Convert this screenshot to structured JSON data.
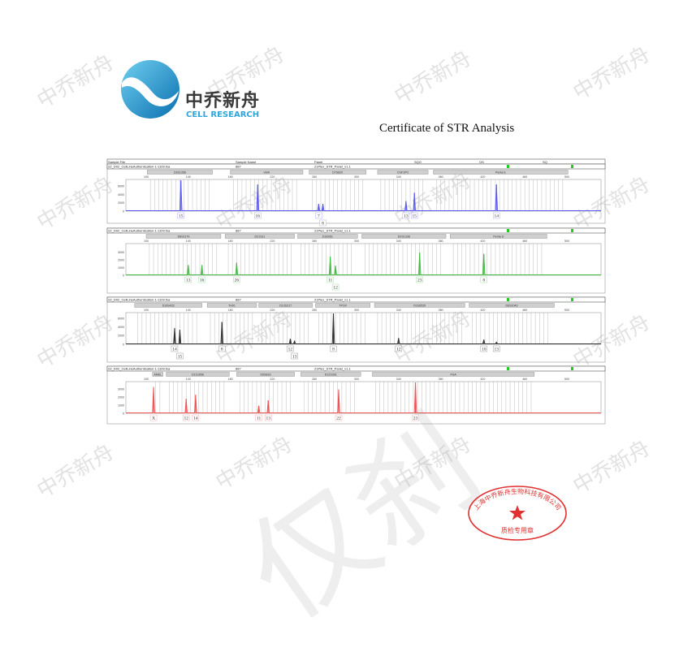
{
  "watermark_text": "中乔新舟",
  "logo": {
    "cn": "中乔新舟",
    "en": "CELL RESEARCH"
  },
  "title": "Certificate of STR Analysis",
  "header": {
    "columns": [
      "Sample File",
      "Sample Name",
      "Panel",
      "SQO",
      "OS",
      "SQ"
    ]
  },
  "sample": {
    "file": "2Z_D02_CellLineAuthentication-1-1109.fsa",
    "name": "887",
    "panel": "21Plex_STR_Panel_v1.1",
    "status_color": "#22cc22"
  },
  "chart_data": [
    {
      "type": "line",
      "dye_color": "#5a5af0",
      "xlim": [
        80,
        530
      ],
      "x_ticks": [
        100,
        140,
        180,
        220,
        260,
        300,
        340,
        380,
        420,
        460,
        500
      ],
      "ylim": [
        0,
        7400
      ],
      "y_ticks": [
        2000,
        4000,
        6000
      ],
      "loci": [
        {
          "name": "D3S1358",
          "range": [
            101,
            163
          ]
        },
        {
          "name": "vWA",
          "range": [
            180,
            249
          ]
        },
        {
          "name": "D7S820",
          "range": [
            255,
            309
          ]
        },
        {
          "name": "CSF1PO",
          "range": [
            320,
            368
          ]
        },
        {
          "name": "Penta E",
          "range": [
            373,
            501
          ]
        }
      ],
      "peaks": [
        {
          "allele": "15",
          "bp": 133,
          "height": 7400
        },
        {
          "allele": "16",
          "bp": 206,
          "height": 6400
        },
        {
          "allele": "7",
          "bp": 264,
          "height": 1750
        },
        {
          "allele": "8",
          "bp": 268,
          "height": 1750
        },
        {
          "allele": "13",
          "bp": 347,
          "height": 2400
        },
        {
          "allele": "15",
          "bp": 355,
          "height": 4400
        },
        {
          "allele": "14",
          "bp": 433,
          "height": 6400
        }
      ]
    },
    {
      "type": "line",
      "dye_color": "#44bb44",
      "xlim": [
        80,
        530
      ],
      "x_ticks": [
        100,
        140,
        180,
        220,
        260,
        300,
        340,
        380,
        420,
        460,
        500
      ],
      "ylim": [
        0,
        4000
      ],
      "y_ticks": [
        1000,
        2000,
        3000
      ],
      "loci": [
        {
          "name": "D8S1179",
          "range": [
            100,
            171
          ]
        },
        {
          "name": "D21S11",
          "range": [
            175,
            241
          ]
        },
        {
          "name": "D18S51",
          "range": [
            244,
            301
          ]
        },
        {
          "name": "D2S1338",
          "range": [
            305,
            385
          ]
        },
        {
          "name": "Penta D",
          "range": [
            389,
            481
          ]
        }
      ],
      "peaks": [
        {
          "allele": "13",
          "bp": 140,
          "height": 1330
        },
        {
          "allele": "16",
          "bp": 153,
          "height": 1330
        },
        {
          "allele": "26",
          "bp": 186,
          "height": 1630
        },
        {
          "allele": "11",
          "bp": 275,
          "height": 2400
        },
        {
          "allele": "12",
          "bp": 280,
          "height": 1230
        },
        {
          "allele": "23",
          "bp": 360,
          "height": 2930
        },
        {
          "allele": "8",
          "bp": 421,
          "height": 2770
        }
      ]
    },
    {
      "type": "line",
      "dye_color": "#333333",
      "xlim": [
        80,
        530
      ],
      "x_ticks": [
        100,
        140,
        180,
        220,
        260,
        300,
        340,
        380,
        420,
        460,
        500
      ],
      "ylim": [
        0,
        7200
      ],
      "y_ticks": [
        2000,
        4000,
        6000
      ],
      "loci": [
        {
          "name": "D19S433",
          "range": [
            89,
            153
          ]
        },
        {
          "name": "TH01",
          "range": [
            158,
            205
          ]
        },
        {
          "name": "D13S317",
          "range": [
            207,
            258
          ]
        },
        {
          "name": "TPOX",
          "range": [
            261,
            313
          ]
        },
        {
          "name": "D16S539",
          "range": [
            317,
            403
          ]
        },
        {
          "name": "D6S1043",
          "range": [
            407,
            488
          ]
        }
      ],
      "peaks": [
        {
          "allele": "14",
          "bp": 127,
          "height": 3750
        },
        {
          "allele": "15",
          "bp": 132,
          "height": 3400
        },
        {
          "allele": "8",
          "bp": 172,
          "height": 5200
        },
        {
          "allele": "12",
          "bp": 237,
          "height": 1250
        },
        {
          "allele": "13",
          "bp": 241,
          "height": 750
        },
        {
          "allele": "8",
          "bp": 278,
          "height": 7200
        },
        {
          "allele": "12",
          "bp": 340,
          "height": 1440
        },
        {
          "allele": "10",
          "bp": 421,
          "height": 1060
        },
        {
          "allele": "13",
          "bp": 433,
          "height": 500
        }
      ]
    },
    {
      "type": "line",
      "dye_color": "#ee5555",
      "xlim": [
        80,
        530
      ],
      "x_ticks": [
        100,
        140,
        180,
        220,
        260,
        300,
        340,
        380,
        420,
        460,
        500
      ],
      "ylim": [
        0,
        3800
      ],
      "y_ticks": [
        1000,
        2000,
        3000
      ],
      "loci": [
        {
          "name": "AMEL",
          "range": [
            106,
            116
          ]
        },
        {
          "name": "D1S1656",
          "range": [
            119,
            179
          ]
        },
        {
          "name": "D5S818",
          "range": [
            186,
            241
          ]
        },
        {
          "name": "D12S391",
          "range": [
            247,
            304
          ]
        },
        {
          "name": "FGA",
          "range": [
            315,
            469
          ]
        }
      ],
      "peaks": [
        {
          "allele": "X",
          "bp": 107,
          "height": 3230
        },
        {
          "allele": "12",
          "bp": 138,
          "height": 1770
        },
        {
          "allele": "14",
          "bp": 147,
          "height": 2270
        },
        {
          "allele": "11",
          "bp": 207,
          "height": 930
        },
        {
          "allele": "13",
          "bp": 216,
          "height": 1600
        },
        {
          "allele": "22",
          "bp": 283,
          "height": 2930
        },
        {
          "allele": "23",
          "bp": 356,
          "height": 3800
        }
      ]
    }
  ],
  "seal": {
    "company": "上海中乔新舟生物科技有限公司",
    "label": "质检专用章",
    "color": "#e03030"
  }
}
